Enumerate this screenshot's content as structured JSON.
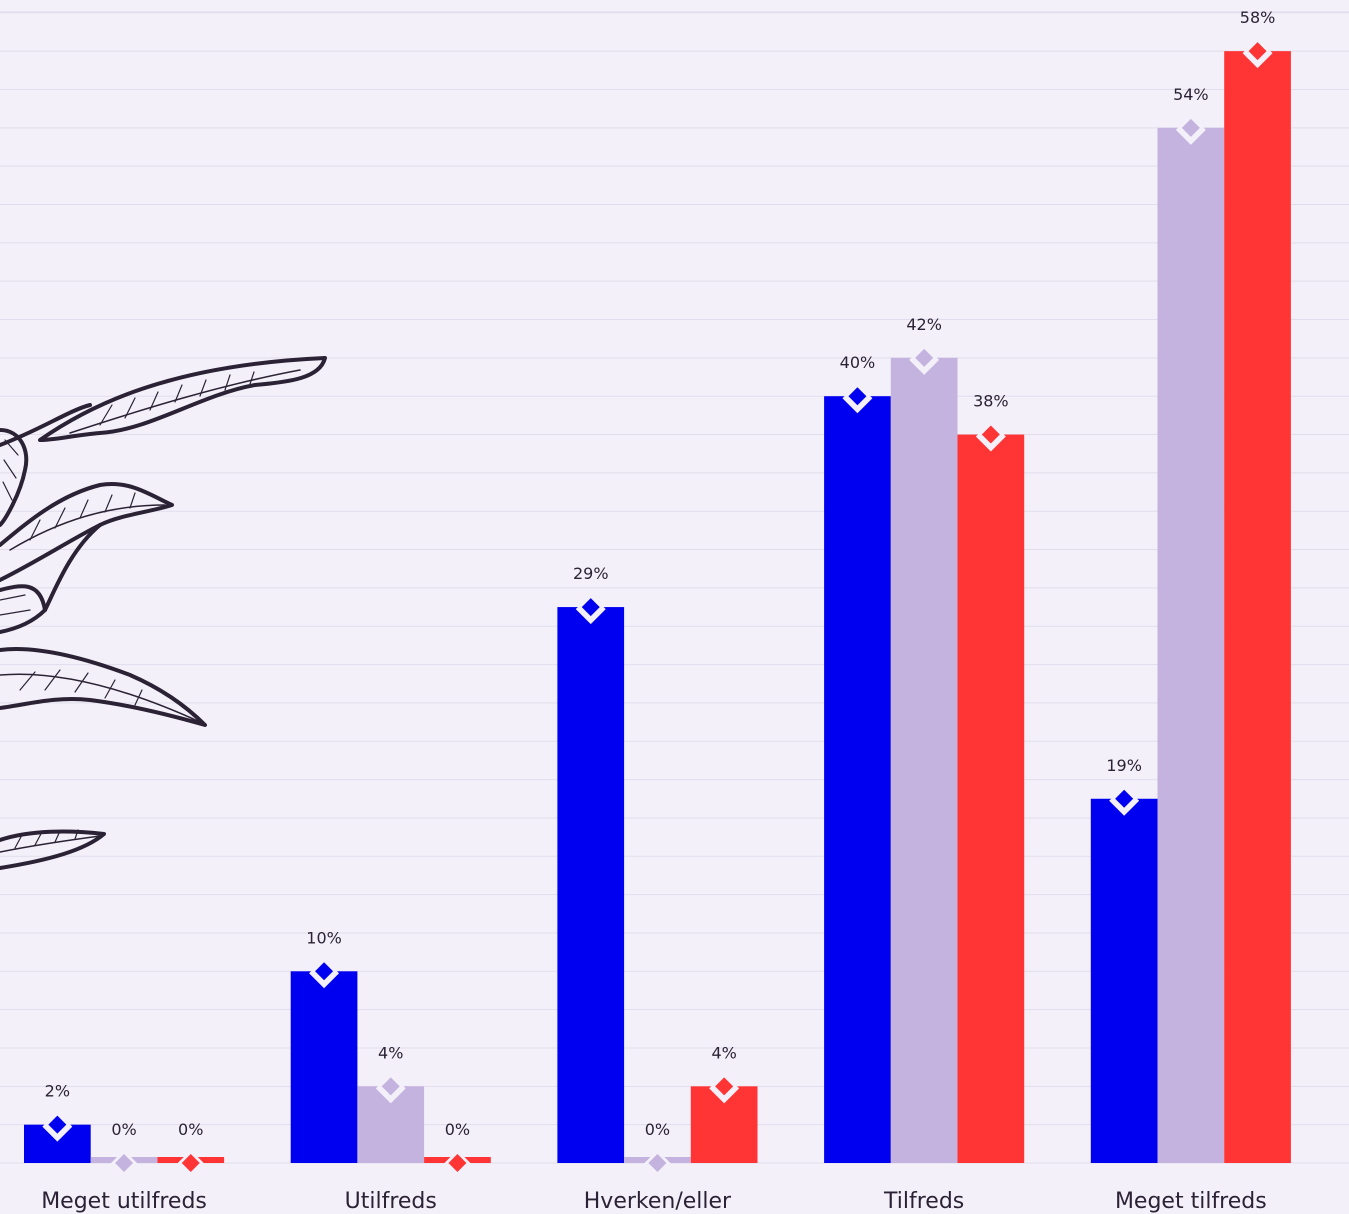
{
  "chart_data": {
    "type": "bar",
    "categories": [
      "Meget utilfreds",
      "Utilfreds",
      "Hverken/eller",
      "Tilfreds",
      "Meget tilfreds"
    ],
    "series": [
      {
        "values": [
          2,
          10,
          29,
          40,
          19
        ],
        "color": "#0000f0"
      },
      {
        "values": [
          0,
          4,
          0,
          42,
          54
        ],
        "color": "#c4b2df"
      },
      {
        "values": [
          0,
          0,
          4,
          38,
          58
        ],
        "color": "#ff3535"
      }
    ],
    "value_labels": [
      [
        "2%",
        "10%",
        "29%",
        "40%",
        "19%"
      ],
      [
        "0%",
        "4%",
        "0%",
        "42%",
        "54%"
      ],
      [
        "0%",
        "0%",
        "4%",
        "38%",
        "58%"
      ]
    ],
    "ylim": [
      0,
      60
    ],
    "grid": true,
    "legend": "none",
    "colors": {
      "background": "#f3f0f9",
      "grid": "#e2ddec",
      "text": "#2b2335",
      "illustration": "#2b2335"
    },
    "decoration": "leaf-illustration"
  }
}
